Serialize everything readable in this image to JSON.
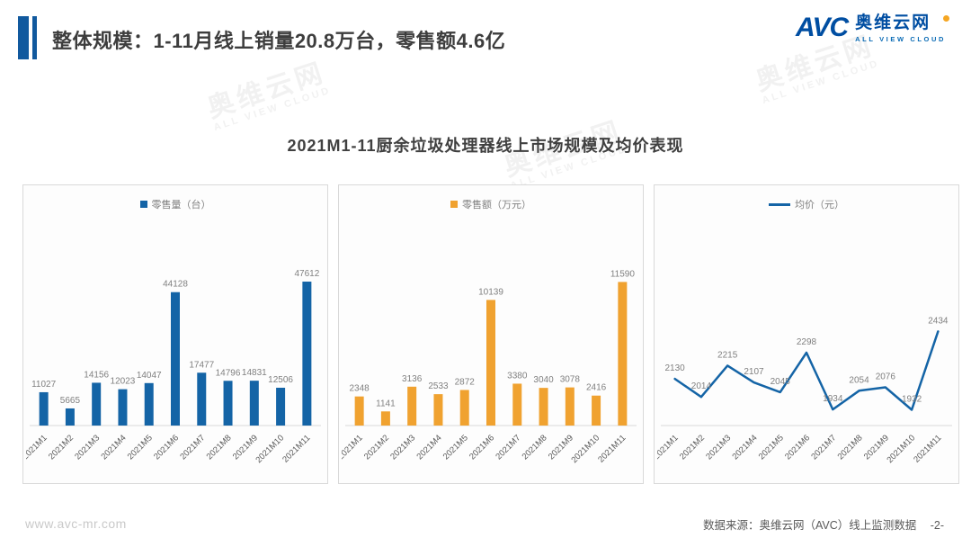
{
  "header": {
    "title": "整体规模：1-11月线上销量20.8万台，零售额4.6亿"
  },
  "logo": {
    "abbr": "AVC",
    "name": "奥维云网",
    "tagline": "ALL VIEW CLOUD"
  },
  "chart_title": "2021M1-11厨余垃圾处理器线上市场规模及均价表现",
  "watermark": {
    "text": "奥维云网",
    "subtext": "ALL VIEW CLOUD"
  },
  "colors": {
    "blue": "#1464a6",
    "orange": "#f0a230",
    "logo_blue": "#004ea2",
    "logo_orange": "#f5a623",
    "axis_gray": "#d9d9d9",
    "value_label_gray": "#808080",
    "tick_label_gray": "#595959"
  },
  "chart_data": [
    {
      "type": "bar",
      "legend": "零售量（台）",
      "color_key": "blue",
      "categories": [
        "2021M1",
        "2021M2",
        "2021M3",
        "2021M4",
        "2021M5",
        "2021M6",
        "2021M7",
        "2021M8",
        "2021M9",
        "2021M10",
        "2021M11"
      ],
      "values": [
        11027,
        5665,
        14156,
        12023,
        14047,
        44128,
        17477,
        14796,
        14831,
        12506,
        47612
      ],
      "ylim": [
        0,
        50000
      ],
      "grid": false,
      "legend_position": "top-center"
    },
    {
      "type": "bar",
      "legend": "零售额（万元）",
      "color_key": "orange",
      "categories": [
        "2021M1",
        "2021M2",
        "2021M3",
        "2021M4",
        "2021M5",
        "2021M6",
        "2021M7",
        "2021M8",
        "2021M9",
        "2021M10",
        "2021M11"
      ],
      "values": [
        2348,
        1141,
        3136,
        2533,
        2872,
        10139,
        3380,
        3040,
        3078,
        2416,
        11590
      ],
      "ylim": [
        0,
        12200
      ],
      "grid": false,
      "legend_position": "top-center"
    },
    {
      "type": "line",
      "legend": "均价（元）",
      "color_key": "blue",
      "categories": [
        "2021M1",
        "2021M2",
        "2021M3",
        "2021M4",
        "2021M5",
        "2021M6",
        "2021M7",
        "2021M8",
        "2021M9",
        "2021M10",
        "2021M11"
      ],
      "values": [
        2130,
        2014,
        2215,
        2107,
        2045,
        2298,
        1934,
        2054,
        2076,
        1932,
        2434
      ],
      "ylim": [
        1900,
        2500
      ],
      "grid": false,
      "legend_position": "top-center"
    }
  ],
  "footer": {
    "website": "www.avc-mr.com",
    "source": "数据来源：奥维云网（AVC）线上监测数据",
    "page": "-2-"
  }
}
